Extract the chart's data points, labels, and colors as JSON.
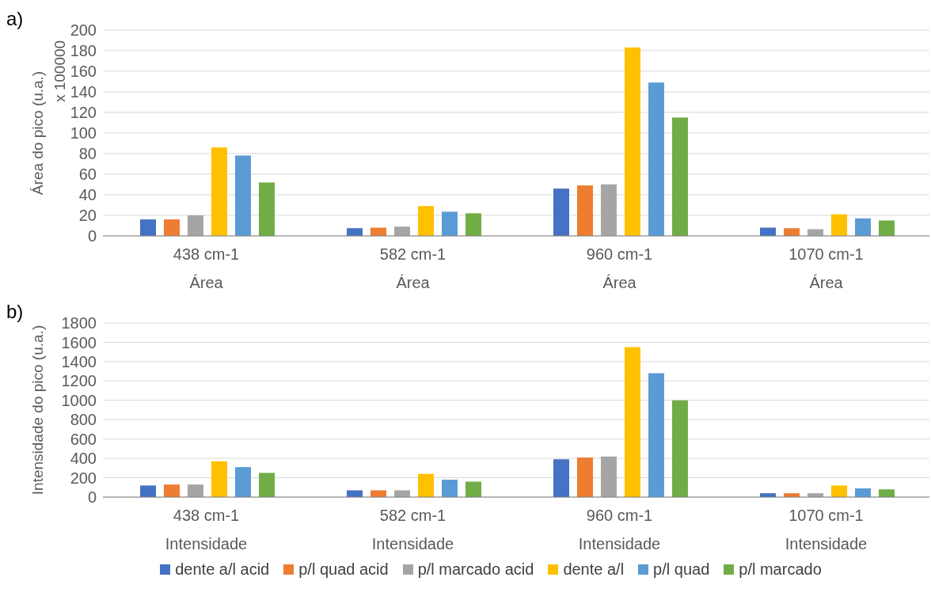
{
  "chart_data": [
    {
      "type": "bar",
      "ylabel": "Área do pico (u.a.)",
      "annotations": [
        "a)",
        "x 100000"
      ],
      "categories": [
        "438 cm-1\nÁrea",
        "582 cm-1\nÁrea",
        "960 cm-1\nÁrea",
        "1070 cm-1\nÁrea"
      ],
      "ylim": [
        0,
        200
      ],
      "yticks": [
        0,
        20,
        40,
        60,
        80,
        100,
        120,
        140,
        160,
        180,
        200
      ],
      "grid": "y",
      "legend": false,
      "series": [
        {
          "color": "#4472c4",
          "values": [
            16,
            7.5,
            46,
            8
          ]
        },
        {
          "color": "#ed7d31",
          "values": [
            16,
            8,
            49,
            7.5
          ]
        },
        {
          "color": "#a5a5a5",
          "values": [
            20,
            9,
            50,
            6.5
          ]
        },
        {
          "color": "#ffc000",
          "values": [
            86,
            29,
            183,
            21
          ]
        },
        {
          "color": "#5b9bd5",
          "values": [
            78,
            23.5,
            149,
            17
          ]
        },
        {
          "color": "#70ad47",
          "values": [
            52,
            22,
            115,
            15
          ]
        }
      ]
    },
    {
      "type": "bar",
      "ylabel": "Intensidade do pico (u.a.)",
      "annotations": [
        "b)"
      ],
      "categories": [
        "438 cm-1\nIntensidade",
        "582 cm-1\nIntensidade",
        "960 cm-1\nIntensidade",
        "1070 cm-1\nIntensidade"
      ],
      "ylim": [
        0,
        1800
      ],
      "yticks": [
        0,
        200,
        400,
        600,
        800,
        1000,
        1200,
        1400,
        1600,
        1800
      ],
      "grid": "y",
      "legend": "bottom",
      "series": [
        {
          "name": "dente a/l acid",
          "color": "#4472c4",
          "values": [
            120,
            70,
            390,
            40
          ]
        },
        {
          "name": "p/l quad acid",
          "color": "#ed7d31",
          "values": [
            130,
            70,
            410,
            40
          ]
        },
        {
          "name": "p/l marcado acid",
          "color": "#a5a5a5",
          "values": [
            130,
            70,
            420,
            40
          ]
        },
        {
          "name": "dente a/l",
          "color": "#ffc000",
          "values": [
            370,
            240,
            1550,
            120
          ]
        },
        {
          "name": "p/l quad",
          "color": "#5b9bd5",
          "values": [
            310,
            180,
            1280,
            90
          ]
        },
        {
          "name": "p/l marcado",
          "color": "#70ad47",
          "values": [
            250,
            160,
            1000,
            80
          ]
        }
      ]
    }
  ]
}
